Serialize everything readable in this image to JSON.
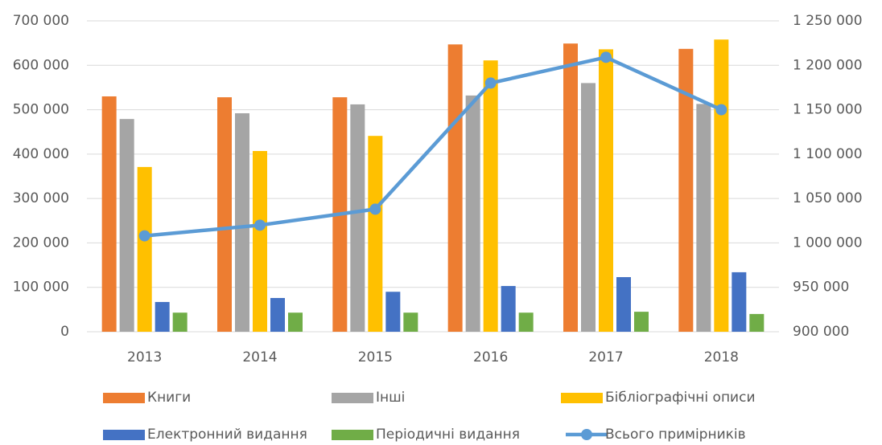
{
  "chart_data": {
    "type": "bar",
    "categories": [
      "2013",
      "2014",
      "2015",
      "2016",
      "2017",
      "2018"
    ],
    "series": [
      {
        "name": "Книги",
        "color": "#ed7d31",
        "values": [
          530000,
          528000,
          528000,
          647000,
          649000,
          637000
        ]
      },
      {
        "name": "Інші",
        "color": "#a5a5a5",
        "values": [
          479000,
          492000,
          512000,
          532000,
          560000,
          513000
        ]
      },
      {
        "name": "Бібліографічні описи",
        "color": "#ffc000",
        "values": [
          371000,
          407000,
          441000,
          611000,
          636000,
          658000
        ]
      },
      {
        "name": "Електронний видання",
        "color": "#4472c4",
        "values": [
          67000,
          76000,
          90000,
          103000,
          123000,
          134000
        ]
      },
      {
        "name": "Періодичні видання",
        "color": "#70ad47",
        "values": [
          43000,
          43000,
          43000,
          43000,
          45000,
          40000
        ]
      },
      {
        "name": "Всього примірників",
        "color": "#5b9bd5",
        "type": "line",
        "axis": "y2",
        "values": [
          1008000,
          1020000,
          1038000,
          1180000,
          1209000,
          1150000
        ]
      }
    ],
    "ylim": [
      0,
      700000
    ],
    "yticks": [
      0,
      {
        "value": 100000,
        "label": "100 000"
      },
      {
        "value": 200000,
        "label": "200 000"
      },
      {
        "value": 300000,
        "label": "300 000"
      },
      {
        "value": 400000,
        "label": "400 000"
      },
      {
        "value": 500000,
        "label": "500 000"
      },
      {
        "value": 600000,
        "label": "600 000"
      },
      {
        "value": 700000,
        "label": "700 000"
      }
    ],
    "y2lim": [
      900000,
      1250000
    ],
    "y2ticks": [
      {
        "value": 900000,
        "label": "900 000"
      },
      {
        "value": 950000,
        "label": "950 000"
      },
      {
        "value": 1000000,
        "label": "1 000 000"
      },
      {
        "value": 1050000,
        "label": "1 050 000"
      },
      {
        "value": 1100000,
        "label": "1 100 000"
      },
      {
        "value": 1150000,
        "label": "1 150 000"
      },
      {
        "value": 1200000,
        "label": "1 200 000"
      },
      {
        "value": 1250000,
        "label": "1 250 000"
      }
    ],
    "grid": true,
    "legend": "bottom"
  }
}
